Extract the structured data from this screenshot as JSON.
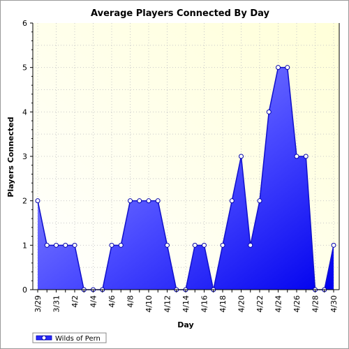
{
  "chart_data": {
    "type": "area",
    "title": "Average Players Connected By Day",
    "xlabel": "Day",
    "ylabel": "Players Connected",
    "ylim": [
      0,
      6
    ],
    "yticks": [
      "0",
      "1",
      "2",
      "3",
      "4",
      "5",
      "6"
    ],
    "x": [
      "3/29",
      "3/30",
      "3/31",
      "4/1",
      "4/2",
      "4/3",
      "4/4",
      "4/5",
      "4/6",
      "4/7",
      "4/8",
      "4/9",
      "4/10",
      "4/11",
      "4/12",
      "4/13",
      "4/14",
      "4/15",
      "4/16",
      "4/17",
      "4/18",
      "4/19",
      "4/20",
      "4/21",
      "4/22",
      "4/23",
      "4/24",
      "4/25",
      "4/26",
      "4/27",
      "4/28",
      "4/29",
      "4/30"
    ],
    "x_tick_labels": [
      "3/29",
      "3/31",
      "4/2",
      "4/4",
      "4/6",
      "4/8",
      "4/10",
      "4/12",
      "4/14",
      "4/16",
      "4/18",
      "4/20",
      "4/22",
      "4/24",
      "4/26",
      "4/28",
      "4/30"
    ],
    "series": [
      {
        "name": "Wilds of Pern",
        "values": [
          2,
          1,
          1,
          1,
          1,
          0,
          0,
          0,
          1,
          1,
          2,
          2,
          2,
          2,
          1,
          0,
          0,
          1,
          1,
          0,
          1,
          2,
          3,
          1,
          2,
          4,
          5,
          5,
          3,
          3,
          0,
          0,
          1
        ],
        "color": "#0000ff"
      }
    ],
    "grid": true,
    "legend": "bottom-left",
    "plot_background": "#fffff0"
  }
}
